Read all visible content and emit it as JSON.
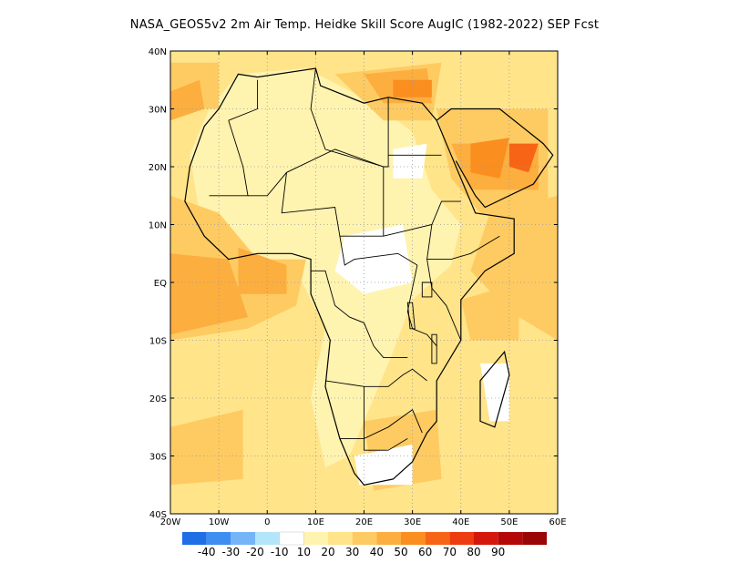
{
  "title": "NASA_GEOS5v2  2m Air Temp. Heidke Skill Score AugIC (1982-2022) SEP Fcst",
  "map": {
    "lon_range": [
      -20,
      60
    ],
    "lat_range": [
      -40,
      40
    ],
    "lon_ticks": [
      {
        "value": -20,
        "label": "20W"
      },
      {
        "value": -10,
        "label": "10W"
      },
      {
        "value": 0,
        "label": "0"
      },
      {
        "value": 10,
        "label": "10E"
      },
      {
        "value": 20,
        "label": "20E"
      },
      {
        "value": 30,
        "label": "30E"
      },
      {
        "value": 40,
        "label": "40E"
      },
      {
        "value": 50,
        "label": "50E"
      },
      {
        "value": 60,
        "label": "60E"
      }
    ],
    "lat_ticks": [
      {
        "value": 40,
        "label": "40N"
      },
      {
        "value": 30,
        "label": "30N"
      },
      {
        "value": 20,
        "label": "20N"
      },
      {
        "value": 10,
        "label": "10N"
      },
      {
        "value": 0,
        "label": "EQ"
      },
      {
        "value": -10,
        "label": "10S"
      },
      {
        "value": -20,
        "label": "20S"
      },
      {
        "value": -30,
        "label": "30S"
      },
      {
        "value": -40,
        "label": "40S"
      }
    ],
    "grid": "dotted",
    "skill_regions": [
      {
        "level": 20,
        "polygon": [
          [
            -20,
            40
          ],
          [
            60,
            40
          ],
          [
            60,
            -40
          ],
          [
            -20,
            -40
          ]
        ]
      },
      {
        "level": 10,
        "polygon": [
          [
            -6,
            36
          ],
          [
            8,
            37
          ],
          [
            22,
            31
          ],
          [
            30,
            26
          ],
          [
            34,
            16
          ],
          [
            40,
            10
          ],
          [
            38,
            3
          ],
          [
            30,
            -3
          ],
          [
            26,
            -12
          ],
          [
            22,
            -20
          ],
          [
            17,
            -30
          ],
          [
            12,
            -32
          ],
          [
            9,
            -20
          ],
          [
            12,
            -8
          ],
          [
            6,
            2
          ],
          [
            -6,
            5
          ],
          [
            -14,
            12
          ],
          [
            -16,
            22
          ],
          [
            -12,
            30
          ]
        ]
      },
      {
        "level": 30,
        "polygon": [
          [
            -20,
            15
          ],
          [
            -10,
            12
          ],
          [
            -2,
            4
          ],
          [
            8,
            4
          ],
          [
            6,
            -4
          ],
          [
            -4,
            -8
          ],
          [
            -20,
            -10
          ]
        ]
      },
      {
        "level": 30,
        "polygon": [
          [
            14,
            36
          ],
          [
            36,
            38
          ],
          [
            34,
            28
          ],
          [
            24,
            28
          ]
        ]
      },
      {
        "level": 30,
        "polygon": [
          [
            35,
            30
          ],
          [
            58,
            30
          ],
          [
            58,
            10
          ],
          [
            44,
            12
          ],
          [
            38,
            18
          ]
        ]
      },
      {
        "level": 30,
        "polygon": [
          [
            46,
            12
          ],
          [
            60,
            15
          ],
          [
            60,
            -10
          ],
          [
            50,
            -5
          ],
          [
            42,
            2
          ]
        ]
      },
      {
        "level": 30,
        "polygon": [
          [
            -20,
            38
          ],
          [
            -10,
            38
          ],
          [
            -10,
            30
          ],
          [
            -20,
            30
          ]
        ]
      },
      {
        "level": 30,
        "polygon": [
          [
            -20,
            -25
          ],
          [
            -5,
            -22
          ],
          [
            -5,
            -34
          ],
          [
            -20,
            -35
          ]
        ]
      },
      {
        "level": 30,
        "polygon": [
          [
            20,
            -24
          ],
          [
            35,
            -22
          ],
          [
            36,
            -34
          ],
          [
            22,
            -36
          ]
        ]
      },
      {
        "level": 30,
        "polygon": [
          [
            40,
            -3
          ],
          [
            52,
            0
          ],
          [
            52,
            -10
          ],
          [
            42,
            -10
          ]
        ]
      },
      {
        "level": 40,
        "polygon": [
          [
            -20,
            5
          ],
          [
            -8,
            4
          ],
          [
            -4,
            -6
          ],
          [
            -20,
            -9
          ]
        ]
      },
      {
        "level": 40,
        "polygon": [
          [
            -6,
            6
          ],
          [
            4,
            3
          ],
          [
            4,
            -2
          ],
          [
            -6,
            -2
          ]
        ]
      },
      {
        "level": 40,
        "polygon": [
          [
            20,
            36
          ],
          [
            33,
            37
          ],
          [
            34,
            31
          ],
          [
            24,
            31
          ]
        ]
      },
      {
        "level": 40,
        "polygon": [
          [
            38,
            24
          ],
          [
            56,
            24
          ],
          [
            56,
            16
          ],
          [
            42,
            16
          ]
        ]
      },
      {
        "level": 40,
        "polygon": [
          [
            -20,
            33
          ],
          [
            -14,
            35
          ],
          [
            -13,
            30
          ],
          [
            -20,
            28
          ]
        ]
      },
      {
        "level": 50,
        "polygon": [
          [
            26,
            35
          ],
          [
            34,
            35
          ],
          [
            34,
            32
          ],
          [
            26,
            32
          ]
        ]
      },
      {
        "level": 50,
        "polygon": [
          [
            42,
            24
          ],
          [
            50,
            25
          ],
          [
            48,
            18
          ],
          [
            42,
            19
          ]
        ]
      },
      {
        "level": 60,
        "polygon": [
          [
            50,
            24
          ],
          [
            56,
            24
          ],
          [
            54,
            19
          ],
          [
            50,
            20
          ]
        ]
      },
      {
        "level": 0,
        "polygon": [
          [
            26,
            23
          ],
          [
            33,
            24
          ],
          [
            32,
            18
          ],
          [
            26,
            18
          ]
        ]
      },
      {
        "level": 0,
        "polygon": [
          [
            16,
            8
          ],
          [
            28,
            10
          ],
          [
            30,
            0
          ],
          [
            20,
            -2
          ],
          [
            14,
            2
          ]
        ]
      },
      {
        "level": 0,
        "polygon": [
          [
            44,
            -14
          ],
          [
            50,
            -14
          ],
          [
            50,
            -24
          ],
          [
            46,
            -24
          ]
        ]
      },
      {
        "level": 0,
        "polygon": [
          [
            18,
            -30
          ],
          [
            30,
            -28
          ],
          [
            30,
            -35
          ],
          [
            19,
            -35
          ]
        ]
      }
    ]
  },
  "colorbar": {
    "colors": [
      "#1f6fe5",
      "#3d8ef0",
      "#76b4f8",
      "#b4e6fb",
      "#ffffff",
      "#fff3b0",
      "#ffe48a",
      "#fecb62",
      "#fcae3f",
      "#fa8e1f",
      "#f86415",
      "#ee3b10",
      "#d4160c",
      "#b40808",
      "#9c0505"
    ],
    "labels": [
      {
        "after_index": 0,
        "text": "-40"
      },
      {
        "after_index": 1,
        "text": "-30"
      },
      {
        "after_index": 2,
        "text": "-20"
      },
      {
        "after_index": 3,
        "text": "-10"
      },
      {
        "after_index": 4,
        "text": "10"
      },
      {
        "after_index": 5,
        "text": "20"
      },
      {
        "after_index": 6,
        "text": "30"
      },
      {
        "after_index": 7,
        "text": "40"
      },
      {
        "after_index": 8,
        "text": "50"
      },
      {
        "after_index": 9,
        "text": "60"
      },
      {
        "after_index": 10,
        "text": "70"
      },
      {
        "after_index": 11,
        "text": "80"
      },
      {
        "after_index": 12,
        "text": "90"
      }
    ]
  },
  "level_colors": {
    "0": "#ffffff",
    "10": "#fff3b0",
    "20": "#ffe48a",
    "30": "#fecb62",
    "40": "#fcae3f",
    "50": "#fa8e1f",
    "60": "#f86415"
  },
  "coastline": [
    [
      -6,
      36
    ],
    [
      -2,
      35.5
    ],
    [
      10,
      37
    ],
    [
      11,
      34
    ],
    [
      20,
      31
    ],
    [
      25,
      32
    ],
    [
      32,
      31
    ],
    [
      35,
      28
    ],
    [
      38,
      22
    ],
    [
      43,
      12
    ],
    [
      51,
      11
    ],
    [
      51,
      5
    ],
    [
      45,
      2
    ],
    [
      40,
      -3
    ],
    [
      40,
      -10
    ],
    [
      35,
      -17
    ],
    [
      35,
      -24
    ],
    [
      33,
      -26
    ],
    [
      30,
      -31
    ],
    [
      26,
      -34
    ],
    [
      20,
      -35
    ],
    [
      18,
      -33
    ],
    [
      15,
      -27
    ],
    [
      12,
      -18
    ],
    [
      13,
      -10
    ],
    [
      9,
      -2
    ],
    [
      9,
      4
    ],
    [
      5,
      5
    ],
    [
      -2,
      5
    ],
    [
      -8,
      4
    ],
    [
      -13,
      8
    ],
    [
      -17,
      14
    ],
    [
      -16,
      20
    ],
    [
      -13,
      27
    ],
    [
      -10,
      30
    ],
    [
      -6,
      36
    ]
  ],
  "madagascar": [
    [
      49,
      -12
    ],
    [
      50,
      -16
    ],
    [
      47,
      -25
    ],
    [
      44,
      -24
    ],
    [
      44,
      -17
    ],
    [
      47,
      -14
    ]
  ],
  "arabia": [
    [
      35,
      28
    ],
    [
      38,
      30
    ],
    [
      48,
      30
    ],
    [
      57,
      24
    ],
    [
      59,
      22
    ],
    [
      55,
      17
    ],
    [
      45,
      13
    ],
    [
      43,
      15
    ],
    [
      39,
      21
    ]
  ],
  "borders": [
    [
      [
        -8,
        28
      ],
      [
        -2,
        30
      ],
      [
        -2,
        35
      ]
    ],
    [
      [
        -8,
        28
      ],
      [
        -5,
        20
      ],
      [
        -4,
        15
      ],
      [
        -12,
        15
      ]
    ],
    [
      [
        10,
        37
      ],
      [
        9,
        30
      ],
      [
        12,
        23
      ],
      [
        24,
        20
      ]
    ],
    [
      [
        25,
        32
      ],
      [
        25,
        20
      ],
      [
        24,
        20
      ],
      [
        24,
        8
      ]
    ],
    [
      [
        25,
        22
      ],
      [
        36,
        22
      ]
    ],
    [
      [
        24,
        20
      ],
      [
        14,
        23
      ],
      [
        4,
        19
      ],
      [
        0,
        15
      ],
      [
        -4,
        15
      ]
    ],
    [
      [
        4,
        19
      ],
      [
        3,
        12
      ],
      [
        14,
        13
      ],
      [
        15,
        8
      ],
      [
        24,
        8
      ]
    ],
    [
      [
        24,
        8
      ],
      [
        34,
        10
      ],
      [
        36,
        14
      ],
      [
        40,
        14
      ]
    ],
    [
      [
        34,
        10
      ],
      [
        33,
        4
      ],
      [
        38,
        4
      ],
      [
        42,
        5
      ],
      [
        48,
        8
      ]
    ],
    [
      [
        15,
        8
      ],
      [
        16,
        3
      ],
      [
        18,
        4
      ],
      [
        27,
        5
      ],
      [
        31,
        3
      ]
    ],
    [
      [
        9,
        2
      ],
      [
        12,
        2
      ],
      [
        14,
        -4
      ],
      [
        17,
        -6
      ],
      [
        20,
        -7
      ],
      [
        22,
        -11
      ],
      [
        24,
        -13
      ],
      [
        29,
        -13
      ]
    ],
    [
      [
        31,
        3
      ],
      [
        30,
        -1
      ],
      [
        29,
        -5
      ],
      [
        30,
        -8
      ],
      [
        33,
        -9
      ],
      [
        35,
        -11
      ]
    ],
    [
      [
        33,
        4
      ],
      [
        34,
        -1
      ],
      [
        37,
        -4
      ],
      [
        40,
        -10
      ]
    ],
    [
      [
        12,
        -17
      ],
      [
        20,
        -18
      ],
      [
        25,
        -18
      ],
      [
        28,
        -16
      ],
      [
        30,
        -15
      ],
      [
        33,
        -17
      ]
    ],
    [
      [
        20,
        -18
      ],
      [
        20,
        -22
      ],
      [
        20,
        -27
      ],
      [
        25,
        -25
      ],
      [
        30,
        -22
      ],
      [
        32,
        -26
      ]
    ],
    [
      [
        15,
        -27
      ],
      [
        20,
        -27
      ],
      [
        20,
        -29
      ],
      [
        25,
        -29
      ],
      [
        29,
        -27
      ]
    ]
  ],
  "lakes": [
    [
      [
        32,
        0
      ],
      [
        34,
        0
      ],
      [
        34,
        -2.5
      ],
      [
        32,
        -2.5
      ]
    ],
    [
      [
        29,
        -3.5
      ],
      [
        30,
        -3.5
      ],
      [
        30.5,
        -8
      ],
      [
        29.5,
        -8
      ]
    ],
    [
      [
        34,
        -9
      ],
      [
        35,
        -9
      ],
      [
        35,
        -14
      ],
      [
        34,
        -14
      ]
    ]
  ]
}
